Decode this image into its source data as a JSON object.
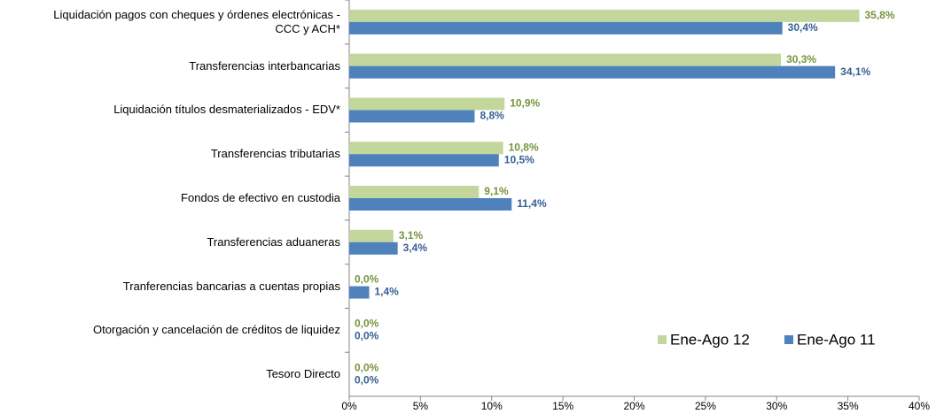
{
  "chart_data": {
    "type": "hbar",
    "categories": [
      "Liquidación pagos con cheques y órdenes electrónicas -\nCCC y ACH*",
      "Transferencias interbancarias",
      "Liquidación títulos desmaterializados - EDV*",
      "Transferencias tributarias",
      "Fondos de efectivo en custodia",
      "Transferencias aduaneras",
      "Tranferencias bancarias a cuentas propias",
      "Otorgación y cancelación de créditos de liquidez",
      "Tesoro Directo"
    ],
    "series": [
      {
        "name": "Ene-Ago 12",
        "color": "#c3d69b",
        "label_color": "#77933c",
        "values": [
          35.8,
          30.3,
          10.9,
          10.8,
          9.1,
          3.1,
          0,
          0,
          0
        ],
        "value_labels": [
          "35,8%",
          "30,3%",
          "10,9%",
          "10,8%",
          "9,1%",
          "3,1%",
          "0,0%",
          "0,0%",
          "0,0%"
        ]
      },
      {
        "name": "Ene-Ago 11",
        "color": "#4f81bd",
        "label_color": "#376092",
        "values": [
          30.4,
          34.1,
          8.8,
          10.5,
          11.4,
          3.4,
          1.4,
          0,
          0
        ],
        "value_labels": [
          "30,4%",
          "34,1%",
          "8,8%",
          "10,5%",
          "11,4%",
          "3,4%",
          "1,4%",
          "0,0%",
          "0,0%"
        ]
      }
    ],
    "xlim": [
      0,
      40
    ],
    "xticks": [
      {
        "value": 0,
        "label": "0%"
      },
      {
        "value": 5,
        "label": "5%"
      },
      {
        "value": 10,
        "label": "10%"
      },
      {
        "value": 15,
        "label": "15%"
      },
      {
        "value": 20,
        "label": "20%"
      },
      {
        "value": 25,
        "label": "25%"
      },
      {
        "value": 30,
        "label": "30%"
      },
      {
        "value": 35,
        "label": "35%"
      },
      {
        "value": 40,
        "label": "40%"
      }
    ],
    "legend": "bottom-right"
  }
}
